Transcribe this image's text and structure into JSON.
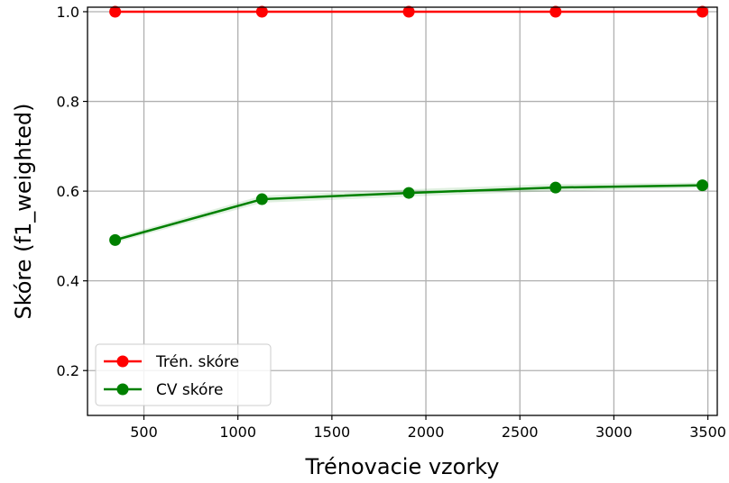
{
  "chart_data": {
    "type": "line",
    "xlabel": "Trénovacie vzorky",
    "ylabel": "Skóre (f1_weighted)",
    "xlim": [
      200,
      3550
    ],
    "ylim": [
      0.1,
      1.01
    ],
    "x_ticks": [
      500,
      1000,
      1500,
      2000,
      2500,
      3000,
      3500
    ],
    "y_ticks": [
      0.2,
      0.4,
      0.6,
      0.8,
      1.0
    ],
    "y_tick_labels": [
      "0.2",
      "0.4",
      "0.6",
      "0.8",
      "1.0"
    ],
    "grid": true,
    "legend_position": "lower-left",
    "x": [
      347,
      1128,
      1909,
      2690,
      3471
    ],
    "series": [
      {
        "name": "Trén. skóre",
        "color": "#ff0000",
        "values": [
          1.0,
          1.0,
          1.0,
          1.0,
          1.0
        ],
        "band": [
          0.0,
          0.0,
          0.0,
          0.0,
          0.0
        ]
      },
      {
        "name": "CV skóre",
        "color": "#008000",
        "values": [
          0.491,
          0.582,
          0.596,
          0.608,
          0.613
        ],
        "band": [
          0.006,
          0.008,
          0.008,
          0.008,
          0.006
        ]
      }
    ]
  }
}
